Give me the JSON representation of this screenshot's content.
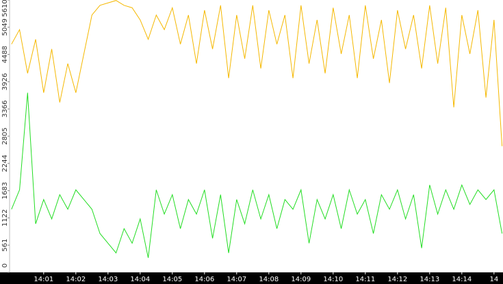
{
  "chart_data": {
    "type": "line",
    "x": [
      0,
      0.25,
      0.5,
      0.75,
      1,
      1.25,
      1.5,
      1.75,
      2,
      2.25,
      2.5,
      2.75,
      3,
      3.25,
      3.5,
      3.75,
      4,
      4.25,
      4.5,
      4.75,
      5,
      5.25,
      5.5,
      5.75,
      6,
      6.25,
      6.5,
      6.75,
      7,
      7.25,
      7.5,
      7.75,
      8,
      8.25,
      8.5,
      8.75,
      9,
      9.25,
      9.5,
      9.75,
      10,
      10.25,
      10.5,
      10.75,
      11,
      11.25,
      11.5,
      11.75,
      12,
      12.25,
      12.5,
      12.75,
      13,
      13.25,
      13.5,
      13.75,
      14,
      14.25,
      14.5,
      14.75,
      15,
      15.25
    ],
    "series": [
      {
        "color": "#f5b800",
        "values": [
          4700,
          5000,
          4100,
          4800,
          3700,
          4600,
          3500,
          4300,
          3700,
          4500,
          5300,
          5500,
          5550,
          5600,
          5500,
          5450,
          5200,
          4800,
          5300,
          5000,
          5450,
          4700,
          5300,
          4300,
          5400,
          4600,
          5500,
          4000,
          5300,
          4400,
          5500,
          4200,
          5400,
          4700,
          5300,
          4000,
          5500,
          4300,
          5200,
          4100,
          5450,
          4500,
          5300,
          4000,
          5500,
          4400,
          5200,
          3900,
          5400,
          4600,
          5300,
          4200,
          5500,
          4300,
          5450,
          3400,
          5300,
          4500,
          5400,
          3600,
          5200,
          2600
        ]
      },
      {
        "color": "#22dd22",
        "values": [
          1300,
          1700,
          3700,
          1000,
          1500,
          1100,
          1600,
          1300,
          1700,
          1500,
          1300,
          800,
          600,
          400,
          900,
          600,
          1100,
          300,
          1700,
          1200,
          1600,
          900,
          1500,
          1200,
          1700,
          700,
          1600,
          400,
          1500,
          1000,
          1700,
          1100,
          1600,
          900,
          1500,
          1300,
          1700,
          600,
          1500,
          1100,
          1600,
          900,
          1700,
          1200,
          1500,
          800,
          1600,
          1300,
          1700,
          1100,
          1600,
          500,
          1800,
          1200,
          1700,
          1300,
          1800,
          1400,
          1700,
          1500,
          1700,
          800
        ]
      }
    ],
    "xlim": [
      -0.06,
      15.28
    ],
    "xticks": [
      {
        "value": 1,
        "label": "14:01"
      },
      {
        "value": 2,
        "label": "14:02"
      },
      {
        "value": 3,
        "label": "14:03"
      },
      {
        "value": 4,
        "label": "14:04"
      },
      {
        "value": 5,
        "label": "14:05"
      },
      {
        "value": 6,
        "label": "14:06"
      },
      {
        "value": 7,
        "label": "14:07"
      },
      {
        "value": 8,
        "label": "14:08"
      },
      {
        "value": 9,
        "label": "14:09"
      },
      {
        "value": 10,
        "label": "14:10"
      },
      {
        "value": 11,
        "label": "14:11"
      },
      {
        "value": 12,
        "label": "14:12"
      },
      {
        "value": 13,
        "label": "14:13"
      },
      {
        "value": 14,
        "label": "14:14"
      },
      {
        "value": 15,
        "label": "14"
      }
    ],
    "ylim": [
      0,
      5610
    ],
    "yticks": [
      0,
      561,
      1122,
      1683,
      2244,
      2805,
      3366,
      3926,
      4488,
      5049,
      5610
    ]
  }
}
